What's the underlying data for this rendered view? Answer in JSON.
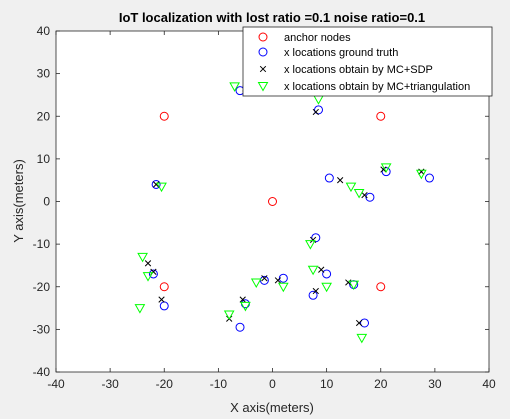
{
  "chart_data": {
    "type": "scatter",
    "title": "IoT localization with lost ratio =0.1 noise ratio=0.1",
    "xlabel": "X axis(meters)",
    "ylabel": "Y axis(meters)",
    "xlim": [
      -40,
      40
    ],
    "ylim": [
      -40,
      40
    ],
    "xticks": [
      "-40",
      "-30",
      "-20",
      "-10",
      "0",
      "10",
      "20",
      "30",
      "40"
    ],
    "yticks": [
      "-40",
      "-30",
      "-20",
      "-10",
      "0",
      "10",
      "20",
      "30",
      "40"
    ],
    "grid": false,
    "legend_position": "top-right",
    "series": [
      {
        "name": "anchor nodes",
        "marker": "circle",
        "color": "#ff0000",
        "x": [
          -20,
          20,
          0,
          -20,
          20
        ],
        "y": [
          20,
          20,
          0,
          -20,
          -20
        ]
      },
      {
        "name": "x locations ground truth",
        "marker": "circle",
        "color": "#0000ff",
        "x": [
          -6,
          8.5,
          -21.5,
          10.5,
          18,
          21,
          29,
          8,
          10,
          -1.5,
          2,
          -20,
          -22,
          7.5,
          15,
          -5,
          -6,
          17
        ],
        "y": [
          26,
          21.5,
          4,
          5.5,
          1,
          7,
          5.5,
          -8.5,
          -17,
          -18.5,
          -18,
          -24.5,
          -17,
          -22,
          -19.5,
          -24,
          -29.5,
          -28.5
        ]
      },
      {
        "name": "x locations obtain by MC+SDP",
        "marker": "x",
        "color": "#000000",
        "x": [
          -5,
          8,
          -21.5,
          12.5,
          17,
          20.5,
          27.5,
          7.5,
          9,
          -1.5,
          1,
          -20.5,
          -23,
          -22,
          8,
          14,
          -5.5,
          -8,
          16
        ],
        "y": [
          26.5,
          21,
          4,
          5,
          1.5,
          7.5,
          7,
          -9,
          -16,
          -18,
          -18.5,
          -23,
          -14.5,
          -16.5,
          -21,
          -19,
          -23,
          -27.5,
          -28.5
        ]
      },
      {
        "name": "x locations obtain by MC+triangulation",
        "marker": "triangle-down",
        "color": "#00ff00",
        "x": [
          -7,
          8.5,
          -20.5,
          21,
          14.5,
          16,
          27.5,
          7,
          7.5,
          10,
          15,
          2,
          -3,
          -5,
          -8,
          -24,
          -23,
          -24.5,
          16.5
        ],
        "y": [
          27,
          24,
          3.5,
          8,
          3.5,
          2,
          6.5,
          -10,
          -16,
          -20,
          -19.5,
          -20,
          -19,
          -24.5,
          -26.5,
          -13,
          -17.5,
          -25,
          -32
        ]
      }
    ]
  }
}
